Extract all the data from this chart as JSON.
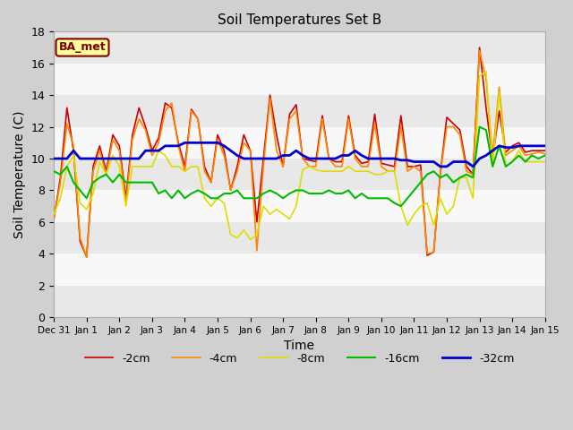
{
  "title": "Soil Temperatures Set B",
  "xlabel": "Time",
  "ylabel": "Soil Temperature (C)",
  "ylim": [
    0,
    18
  ],
  "fig_bg_color": "#d0d0d0",
  "plot_bg_color": "#f0f0f0",
  "band_colors": [
    "#e8e8e8",
    "#f8f8f8"
  ],
  "annotation_text": "BA_met",
  "annotation_bg": "#ffff99",
  "annotation_border": "#800000",
  "annotation_text_color": "#800000",
  "legend_entries": [
    "-2cm",
    "-4cm",
    "-8cm",
    "-16cm",
    "-32cm"
  ],
  "line_colors": [
    "#cc0000",
    "#ff8800",
    "#dddd00",
    "#00bb00",
    "#0000cc"
  ],
  "line_widths": [
    1.2,
    1.2,
    1.2,
    1.5,
    2.0
  ],
  "tick_labels": [
    "Dec 31",
    "Jan 1",
    "Jan 2",
    "Jan 3",
    "Jan 4",
    "Jan 5",
    "Jan 6",
    "Jan 7",
    "Jan 8",
    "Jan 9",
    "Jan 10",
    "Jan 11",
    "Jan 12",
    "Jan 13",
    "Jan 14",
    "Jan 15"
  ],
  "n_per_day": 4,
  "n_days": 15,
  "series": {
    "m2cm": [
      6.2,
      8.8,
      13.2,
      10.5,
      4.8,
      3.8,
      9.5,
      10.8,
      9.2,
      11.5,
      10.8,
      7.5,
      11.5,
      13.2,
      12.0,
      10.5,
      11.3,
      13.5,
      13.2,
      11.0,
      9.5,
      13.1,
      12.5,
      9.5,
      8.5,
      11.5,
      10.5,
      8.0,
      9.5,
      11.5,
      10.5,
      6.0,
      10.0,
      14.0,
      11.5,
      9.5,
      12.8,
      13.4,
      10.0,
      9.9,
      9.8,
      12.7,
      10.0,
      9.8,
      9.8,
      12.7,
      10.2,
      9.7,
      9.8,
      12.8,
      9.7,
      9.6,
      9.5,
      12.7,
      9.5,
      9.5,
      9.6,
      3.9,
      4.1,
      9.0,
      12.6,
      12.2,
      11.8,
      9.5,
      9.0,
      17.0,
      13.2,
      10.0,
      13.0,
      10.4,
      10.8,
      11.0,
      10.4,
      10.5,
      10.5,
      10.5
    ],
    "m4cm": [
      6.2,
      8.5,
      12.2,
      10.8,
      5.0,
      3.8,
      9.2,
      10.5,
      9.0,
      11.2,
      10.5,
      7.2,
      11.2,
      12.5,
      11.8,
      10.2,
      11.0,
      13.0,
      13.5,
      10.8,
      9.2,
      13.0,
      12.5,
      9.2,
      8.5,
      11.2,
      10.2,
      8.0,
      9.2,
      11.0,
      10.5,
      4.2,
      9.5,
      13.8,
      10.5,
      9.5,
      12.5,
      13.0,
      10.0,
      9.5,
      9.5,
      12.5,
      10.0,
      9.5,
      9.5,
      12.5,
      10.0,
      9.5,
      9.5,
      12.2,
      9.5,
      9.2,
      9.2,
      12.0,
      9.2,
      9.5,
      9.2,
      4.0,
      4.1,
      9.0,
      12.0,
      12.0,
      11.5,
      9.2,
      9.0,
      16.8,
      15.0,
      10.2,
      14.5,
      10.2,
      10.5,
      10.8,
      10.2,
      10.3,
      10.4,
      10.3
    ],
    "m8cm": [
      6.5,
      7.5,
      9.5,
      10.2,
      7.2,
      6.8,
      7.8,
      9.8,
      9.0,
      10.2,
      9.5,
      7.0,
      9.5,
      9.5,
      9.5,
      9.5,
      10.5,
      10.2,
      9.5,
      9.5,
      9.2,
      9.5,
      9.5,
      7.5,
      7.0,
      7.5,
      7.2,
      5.2,
      5.0,
      5.5,
      4.9,
      5.2,
      7.0,
      6.5,
      6.8,
      6.5,
      6.2,
      7.0,
      9.3,
      9.5,
      9.3,
      9.2,
      9.2,
      9.2,
      9.2,
      9.5,
      9.2,
      9.2,
      9.2,
      9.0,
      9.0,
      9.2,
      9.2,
      7.0,
      5.8,
      6.5,
      7.0,
      7.2,
      5.8,
      7.5,
      6.5,
      7.0,
      8.8,
      8.8,
      7.5,
      15.2,
      15.5,
      9.5,
      14.2,
      9.5,
      9.8,
      10.5,
      9.8,
      9.8,
      9.8,
      9.8
    ],
    "m16cm": [
      9.2,
      9.0,
      9.5,
      8.5,
      8.0,
      7.5,
      8.5,
      8.8,
      9.0,
      8.5,
      9.0,
      8.5,
      8.5,
      8.5,
      8.5,
      8.5,
      7.8,
      8.0,
      7.5,
      8.0,
      7.5,
      7.8,
      8.0,
      7.8,
      7.5,
      7.5,
      7.8,
      7.8,
      8.0,
      7.5,
      7.5,
      7.5,
      7.8,
      8.0,
      7.8,
      7.5,
      7.8,
      8.0,
      8.0,
      7.8,
      7.8,
      7.8,
      8.0,
      7.8,
      7.8,
      8.0,
      7.5,
      7.8,
      7.5,
      7.5,
      7.5,
      7.5,
      7.2,
      7.0,
      7.5,
      8.0,
      8.5,
      9.0,
      9.2,
      8.8,
      9.0,
      8.5,
      8.8,
      9.0,
      8.8,
      12.0,
      11.8,
      9.5,
      10.8,
      9.5,
      9.8,
      10.2,
      9.8,
      10.2,
      10.0,
      10.2
    ],
    "m32cm": [
      10.0,
      10.0,
      10.0,
      10.5,
      10.0,
      10.0,
      10.0,
      10.0,
      10.0,
      10.0,
      10.0,
      10.0,
      10.0,
      10.0,
      10.5,
      10.5,
      10.5,
      10.8,
      10.8,
      10.8,
      11.0,
      11.0,
      11.0,
      11.0,
      11.0,
      11.0,
      10.8,
      10.5,
      10.2,
      10.0,
      10.0,
      10.0,
      10.0,
      10.0,
      10.0,
      10.2,
      10.2,
      10.5,
      10.2,
      10.0,
      10.0,
      10.0,
      10.0,
      10.0,
      10.2,
      10.2,
      10.5,
      10.2,
      10.0,
      10.0,
      10.0,
      10.0,
      10.0,
      9.9,
      9.9,
      9.8,
      9.8,
      9.8,
      9.8,
      9.5,
      9.5,
      9.8,
      9.8,
      9.8,
      9.5,
      10.0,
      10.2,
      10.5,
      10.8,
      10.7,
      10.7,
      10.8,
      10.8,
      10.8,
      10.8,
      10.8
    ]
  }
}
